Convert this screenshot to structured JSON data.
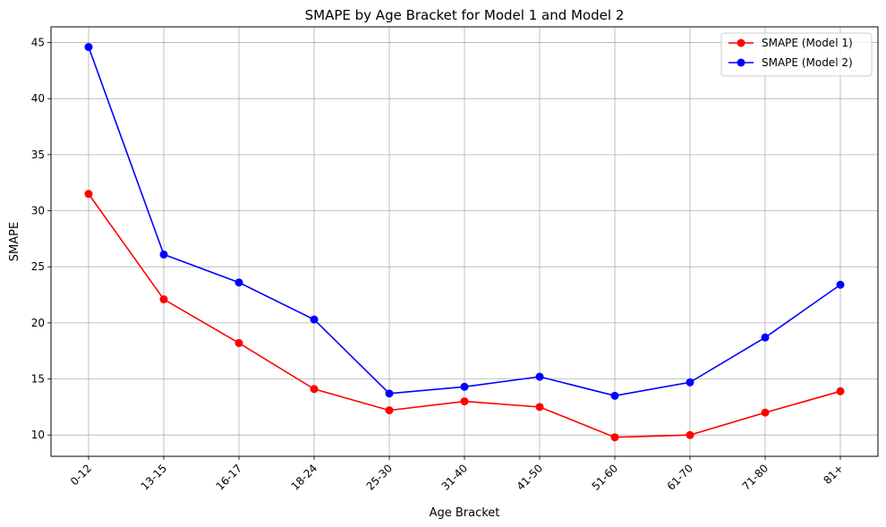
{
  "chart_data": {
    "type": "line",
    "title": "SMAPE by Age Bracket for Model 1 and Model 2",
    "xlabel": "Age Bracket",
    "ylabel": "SMAPE",
    "categories": [
      "0-12",
      "13-15",
      "16-17",
      "18-24",
      "25-30",
      "31-40",
      "41-50",
      "51-60",
      "61-70",
      "71-80",
      "81+"
    ],
    "ylim": [
      8.1,
      46.4
    ],
    "yticks": [
      10,
      15,
      20,
      25,
      30,
      35,
      40,
      45
    ],
    "grid": true,
    "legend_position": "top-right",
    "series": [
      {
        "name": "SMAPE (Model 1)",
        "color": "#ff0000",
        "marker": "circle",
        "values": [
          31.5,
          22.1,
          18.2,
          14.1,
          12.2,
          13.0,
          12.5,
          9.8,
          10.0,
          12.0,
          13.9
        ]
      },
      {
        "name": "SMAPE (Model 2)",
        "color": "#0000ff",
        "marker": "circle",
        "values": [
          44.6,
          26.1,
          23.6,
          20.3,
          13.7,
          14.3,
          15.2,
          13.5,
          14.7,
          18.7,
          23.4
        ]
      }
    ]
  }
}
